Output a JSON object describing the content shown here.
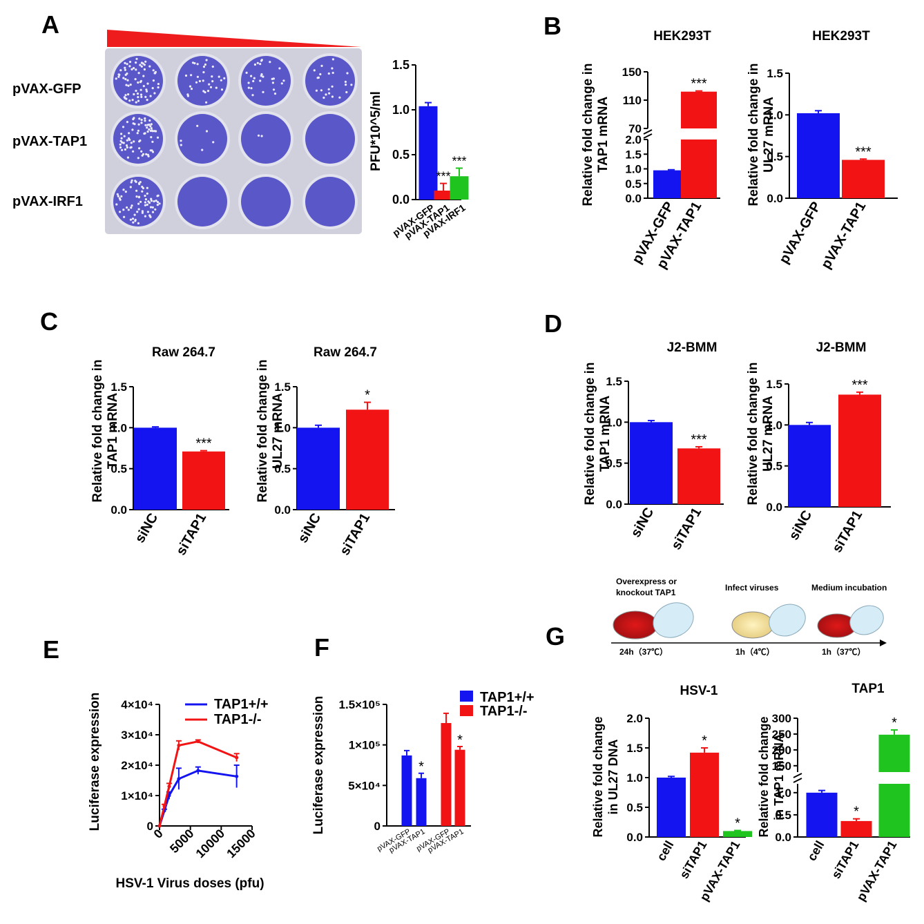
{
  "colors": {
    "blue": "#1414f0",
    "red": "#f21414",
    "green": "#1fc41f",
    "plate": "#cfd0dc",
    "well": "#5a57c8",
    "wedge": "#ee1c1c"
  },
  "panels": {
    "A": "A",
    "B": "B",
    "C": "C",
    "D": "D",
    "E": "E",
    "F": "F",
    "G": "G"
  },
  "plate": {
    "rows": [
      "pVAX-GFP",
      "pVAX-TAP1",
      "pVAX-IRF1"
    ]
  },
  "schematic": {
    "steps": [
      "Overexpress or",
      "knockout TAP1",
      "Infect viruses",
      "Medium incubation"
    ],
    "times": [
      "24h（37℃）",
      "1h（4℃）",
      "1h（37℃）"
    ]
  },
  "chart_data": [
    {
      "id": "A",
      "type": "bar",
      "title": "",
      "ylabel": "PFU*10^5/ml",
      "categories": [
        "pVAX-GFP",
        "pVAX-TAP1",
        "pVAX-IRF1"
      ],
      "values": [
        1.04,
        0.1,
        0.26
      ],
      "errors": [
        0.04,
        0.08,
        0.09
      ],
      "stars": [
        "",
        "***",
        "***"
      ],
      "colors": [
        "blue",
        "red",
        "green"
      ],
      "ylim": [
        0,
        1.5
      ],
      "ticks": [
        0.0,
        0.5,
        1.0,
        1.5
      ],
      "tick_labels": [
        "0.0",
        "0.5",
        "1.0",
        "1.5"
      ]
    },
    {
      "id": "B1",
      "type": "bar",
      "title": "HEK293T",
      "ylabel_lines": [
        "Relative fold change in",
        "TAP1 mRNA"
      ],
      "categories": [
        "pVAX-GFP",
        "pVAX-TAP1"
      ],
      "values": [
        0.95,
        122
      ],
      "errors": [
        0.02,
        1
      ],
      "stars": [
        "",
        "***"
      ],
      "colors": [
        "blue",
        "red"
      ],
      "broken_axis": {
        "lower": [
          0,
          2.0
        ],
        "upper": [
          70,
          150
        ]
      },
      "tick_labels": [
        "0.0",
        "0.5",
        "1.0",
        "1.5",
        "2.0",
        "70",
        "110",
        "150"
      ]
    },
    {
      "id": "B2",
      "type": "bar",
      "title": "HEK293T",
      "ylabel_lines": [
        "Relative fold change in",
        "UL27 mRNA"
      ],
      "categories": [
        "pVAX-GFP",
        "pVAX-TAP1"
      ],
      "values": [
        1.02,
        0.46
      ],
      "errors": [
        0.03,
        0.01
      ],
      "stars": [
        "",
        "***"
      ],
      "colors": [
        "blue",
        "red"
      ],
      "ylim": [
        0,
        1.5
      ],
      "ticks": [
        0.0,
        0.5,
        1.0,
        1.5
      ],
      "tick_labels": [
        "0.0",
        "0.5",
        "1.0",
        "1.5"
      ]
    },
    {
      "id": "C1",
      "type": "bar",
      "title": "Raw 264.7",
      "ylabel_lines": [
        "Relative fold change in",
        "TAP1 mRNA"
      ],
      "categories": [
        "siNC",
        "siTAP1"
      ],
      "values": [
        1.0,
        0.71
      ],
      "errors": [
        0.01,
        0.01
      ],
      "stars": [
        "",
        "***"
      ],
      "colors": [
        "blue",
        "red"
      ],
      "ylim": [
        0,
        1.5
      ],
      "ticks": [
        0.0,
        0.5,
        1.0,
        1.5
      ],
      "tick_labels": [
        "0.0",
        "0.5",
        "1.0",
        "1.5"
      ]
    },
    {
      "id": "C2",
      "type": "bar",
      "title": "Raw 264.7",
      "ylabel_lines": [
        "Relative fold change in",
        "UL27 mRNA"
      ],
      "categories": [
        "siNC",
        "siTAP1"
      ],
      "values": [
        1.0,
        1.22
      ],
      "errors": [
        0.03,
        0.09
      ],
      "stars": [
        "",
        "*"
      ],
      "colors": [
        "blue",
        "red"
      ],
      "ylim": [
        0,
        1.5
      ],
      "ticks": [
        0.0,
        0.5,
        1.0,
        1.5
      ],
      "tick_labels": [
        "0.0",
        "0.5",
        "1.0",
        "1.5"
      ]
    },
    {
      "id": "D1",
      "type": "bar",
      "title": "J2-BMM",
      "ylabel_lines": [
        "Relative fold change in",
        "TAP1 mRNA"
      ],
      "categories": [
        "siNC",
        "siTAP1"
      ],
      "values": [
        1.0,
        0.68
      ],
      "errors": [
        0.02,
        0.02
      ],
      "stars": [
        "",
        "***"
      ],
      "colors": [
        "blue",
        "red"
      ],
      "ylim": [
        0,
        1.5
      ],
      "ticks": [
        0.0,
        0.5,
        1.0,
        1.5
      ],
      "tick_labels": [
        "0.0",
        "0.5",
        "1.0",
        "1.5"
      ]
    },
    {
      "id": "D2",
      "type": "bar",
      "title": "J2-BMM",
      "ylabel_lines": [
        "Relative fold change in",
        "UL27 mRNA"
      ],
      "categories": [
        "siNC",
        "siTAP1"
      ],
      "values": [
        1.0,
        1.37
      ],
      "errors": [
        0.03,
        0.03
      ],
      "stars": [
        "",
        "***"
      ],
      "colors": [
        "blue",
        "red"
      ],
      "ylim": [
        0,
        1.5
      ],
      "ticks": [
        0.0,
        0.5,
        1.0,
        1.5
      ],
      "tick_labels": [
        "0.0",
        "0.5",
        "1.0",
        "1.5"
      ]
    },
    {
      "id": "E",
      "type": "line",
      "xlabel": "HSV-1 Virus doses (pfu)",
      "ylabel": "Luciferase expression",
      "xlim": [
        0,
        15000
      ],
      "ylim": [
        0,
        40000
      ],
      "xticks": [
        "0",
        "5000",
        "10000",
        "15000"
      ],
      "yticks": [
        "0",
        "1×10⁴",
        "2×10⁴",
        "3×10⁴",
        "4×10⁴"
      ],
      "x": [
        0,
        780,
        1560,
        3125,
        6250,
        12500
      ],
      "series": [
        {
          "name": "TAP1+/+",
          "color": "blue",
          "values": [
            0,
            5000,
            10000,
            15500,
            18200,
            16300
          ],
          "errors": [
            0,
            500,
            1200,
            3500,
            1200,
            3700
          ]
        },
        {
          "name": "TAP1-/-",
          "color": "red",
          "values": [
            0,
            6500,
            13000,
            26500,
            27800,
            22500
          ],
          "errors": [
            0,
            600,
            1000,
            1500,
            500,
            1300
          ]
        }
      ]
    },
    {
      "id": "F",
      "type": "bar",
      "ylabel": "Luciferase expression",
      "ylim": [
        0,
        150000
      ],
      "yticks": [
        "0",
        "5×10⁴",
        "1×10⁵",
        "1.5×10⁵"
      ],
      "categories": [
        "pVAX-GFP",
        "pVAX-TAP1",
        "pVAX-GFP",
        "pVAX-TAP1"
      ],
      "values": [
        87000,
        59000,
        127000,
        94000
      ],
      "errors": [
        6000,
        6000,
        12000,
        4000
      ],
      "stars": [
        "",
        "*",
        "",
        "*"
      ],
      "colors": [
        "blue",
        "blue",
        "red",
        "red"
      ],
      "legend": [
        "TAP1+/+",
        "TAP1-/-"
      ]
    },
    {
      "id": "G1",
      "type": "bar",
      "title": "HSV-1",
      "ylabel_lines": [
        "Relative fold change",
        "in UL27 DNA"
      ],
      "categories": [
        "cell",
        "siTAP1",
        "pVAX-TAP1"
      ],
      "values": [
        1.0,
        1.42,
        0.1
      ],
      "errors": [
        0.02,
        0.08,
        0.01
      ],
      "stars": [
        "",
        "*",
        "*"
      ],
      "colors": [
        "blue",
        "red",
        "green"
      ],
      "ylim": [
        0,
        2.0
      ],
      "ticks": [
        0.0,
        0.5,
        1.0,
        1.5,
        2.0
      ],
      "tick_labels": [
        "0.0",
        "0.5",
        "1.0",
        "1.5",
        "2.0"
      ]
    },
    {
      "id": "G2",
      "type": "bar",
      "title": "TAP1",
      "ylabel_lines": [
        "Relative fold change",
        "in TAP1 mRNA"
      ],
      "categories": [
        "cell",
        "siTAP1",
        "pVAX-TAP1"
      ],
      "values": [
        1.0,
        0.36,
        248
      ],
      "errors": [
        0.05,
        0.05,
        15
      ],
      "stars": [
        "",
        "*",
        "*"
      ],
      "colors": [
        "blue",
        "red",
        "green"
      ],
      "broken_axis": {
        "lower": [
          0,
          1.2
        ],
        "upper": [
          130,
          300
        ]
      },
      "tick_labels": [
        "0.0",
        "0.5",
        "1.0",
        "150",
        "200",
        "250",
        "300"
      ]
    }
  ]
}
